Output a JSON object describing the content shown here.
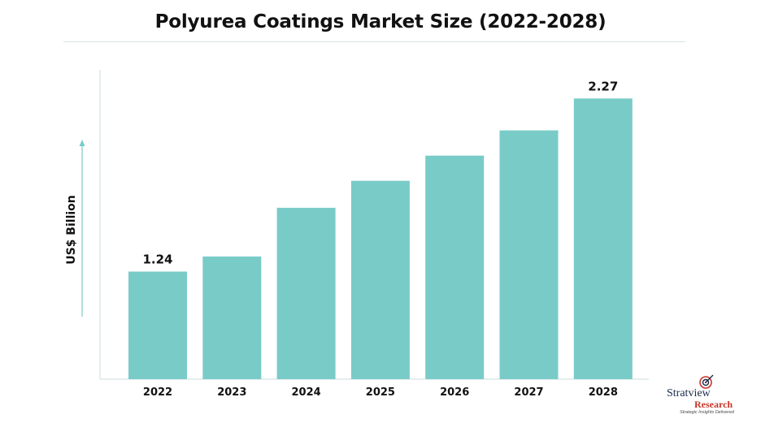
{
  "chart_data": {
    "type": "bar",
    "title": "Polyurea Coatings Market Size (2022-2028)",
    "ylabel": "US$ Billion",
    "xlabel": "",
    "categories": [
      "2022",
      "2023",
      "2024",
      "2025",
      "2026",
      "2027",
      "2028"
    ],
    "values": [
      1.24,
      1.33,
      1.62,
      1.78,
      1.93,
      2.08,
      2.27
    ],
    "data_labels": {
      "2022": "1.24",
      "2028": "2.27"
    },
    "ylim": [
      0.6,
      2.27
    ],
    "grid": false,
    "legend": "none",
    "bar_color": "#79cbc8"
  },
  "branding": {
    "logo_word1": "Stratview",
    "logo_word2": "Research",
    "logo_tagline": "Strategic Insights Delivered"
  }
}
